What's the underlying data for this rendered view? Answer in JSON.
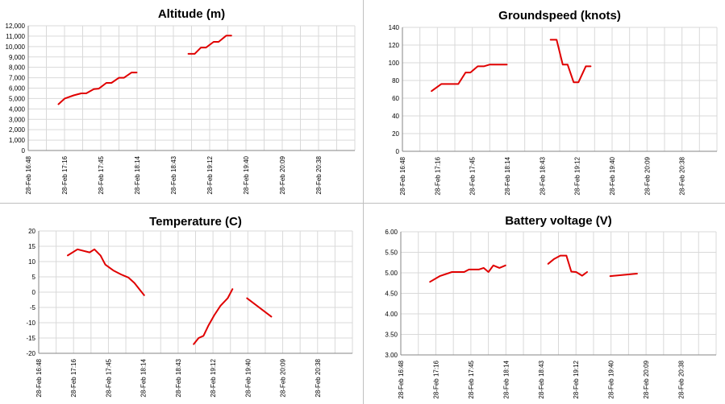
{
  "chart_data": [
    {
      "type": "line",
      "title": "Altitude (m)",
      "xlabel": "",
      "ylabel": "",
      "x_tick_labels": [
        "28-Feb 16:48",
        "28-Feb 17:16",
        "28-Feb 17:45",
        "28-Feb 18:14",
        "28-Feb 18:43",
        "28-Feb 19:12",
        "28-Feb 19:40",
        "28-Feb 20:09",
        "28-Feb 20:38"
      ],
      "y_tick_labels": [
        "0",
        "1,000",
        "2,000",
        "3,000",
        "4,000",
        "5,000",
        "6,000",
        "7,000",
        "8,000",
        "9,000",
        "10,000",
        "11,000",
        "12,000"
      ],
      "xlim": [
        "28-Feb 16:48",
        "28-Feb 21:07"
      ],
      "ylim": [
        0,
        12000
      ],
      "grid": true,
      "legend": "none",
      "line_color": "#e00000",
      "series": [
        {
          "segments": [
            [
              [
                "28-Feb 17:12",
                4450
              ],
              [
                "28-Feb 17:17",
                5000
              ],
              [
                "28-Feb 17:24",
                5300
              ],
              [
                "28-Feb 17:30",
                5500
              ],
              [
                "28-Feb 17:34",
                5500
              ],
              [
                "28-Feb 17:40",
                5900
              ],
              [
                "28-Feb 17:44",
                5950
              ],
              [
                "28-Feb 17:50",
                6500
              ],
              [
                "28-Feb 17:54",
                6500
              ],
              [
                "28-Feb 18:00",
                7000
              ],
              [
                "28-Feb 18:04",
                7000
              ],
              [
                "28-Feb 18:10",
                7500
              ],
              [
                "28-Feb 18:14",
                7500
              ]
            ],
            [
              [
                "28-Feb 18:55",
                9300
              ],
              [
                "28-Feb 19:00",
                9300
              ],
              [
                "28-Feb 19:05",
                9900
              ],
              [
                "28-Feb 19:09",
                9900
              ],
              [
                "28-Feb 19:15",
                10450
              ],
              [
                "28-Feb 19:19",
                10450
              ],
              [
                "28-Feb 19:25",
                11050
              ],
              [
                "28-Feb 19:29",
                11050
              ]
            ]
          ]
        }
      ]
    },
    {
      "type": "line",
      "title": "Groundspeed (knots)",
      "xlabel": "",
      "ylabel": "",
      "x_tick_labels": [
        "28-Feb 16:48",
        "28-Feb 17:16",
        "28-Feb 17:45",
        "28-Feb 18:14",
        "28-Feb 18:43",
        "28-Feb 19:12",
        "28-Feb 19:40",
        "28-Feb 20:09",
        "28-Feb 20:38"
      ],
      "y_tick_labels": [
        "0",
        "20",
        "40",
        "60",
        "80",
        "100",
        "120",
        "140"
      ],
      "xlim": [
        "28-Feb 16:48",
        "28-Feb 21:07"
      ],
      "ylim": [
        0,
        140
      ],
      "grid": true,
      "legend": "none",
      "line_color": "#e00000",
      "series": [
        {
          "segments": [
            [
              [
                "28-Feb 17:12",
                68
              ],
              [
                "28-Feb 17:20",
                76
              ],
              [
                "28-Feb 17:26",
                76
              ],
              [
                "28-Feb 17:34",
                76
              ],
              [
                "28-Feb 17:40",
                89
              ],
              [
                "28-Feb 17:44",
                89
              ],
              [
                "28-Feb 17:50",
                96
              ],
              [
                "28-Feb 17:55",
                96
              ],
              [
                "28-Feb 18:00",
                98
              ],
              [
                "28-Feb 18:14",
                98
              ]
            ],
            [
              [
                "28-Feb 18:50",
                126
              ],
              [
                "28-Feb 18:55",
                126
              ],
              [
                "28-Feb 19:00",
                98
              ],
              [
                "28-Feb 19:04",
                98
              ],
              [
                "28-Feb 19:09",
                78
              ],
              [
                "28-Feb 19:13",
                78
              ],
              [
                "28-Feb 19:19",
                96
              ],
              [
                "28-Feb 19:23",
                96
              ]
            ]
          ]
        }
      ]
    },
    {
      "type": "line",
      "title": "Temperature (C)",
      "xlabel": "",
      "ylabel": "",
      "x_tick_labels": [
        "28-Feb 16:48",
        "28-Feb 17:16",
        "28-Feb 17:45",
        "28-Feb 18:14",
        "28-Feb 18:43",
        "28-Feb 19:12",
        "28-Feb 19:40",
        "28-Feb 20:09",
        "28-Feb 20:38"
      ],
      "y_tick_labels": [
        "-20",
        "-15",
        "-10",
        "-5",
        "0",
        "5",
        "10",
        "15",
        "20"
      ],
      "xlim": [
        "28-Feb 16:48",
        "28-Feb 21:07"
      ],
      "ylim": [
        -20,
        20
      ],
      "grid": true,
      "legend": "none",
      "line_color": "#e00000",
      "series": [
        {
          "segments": [
            [
              [
                "28-Feb 17:12",
                12
              ],
              [
                "28-Feb 17:20",
                14
              ],
              [
                "28-Feb 17:30",
                13
              ],
              [
                "28-Feb 17:34",
                14
              ],
              [
                "28-Feb 17:39",
                12
              ],
              [
                "28-Feb 17:43",
                9
              ],
              [
                "28-Feb 17:50",
                7
              ],
              [
                "28-Feb 17:56",
                5.8
              ],
              [
                "28-Feb 18:02",
                4.8
              ],
              [
                "28-Feb 18:07",
                3
              ],
              [
                "28-Feb 18:12",
                0.5
              ],
              [
                "28-Feb 18:15",
                -1
              ]
            ],
            [
              [
                "28-Feb 18:56",
                -17
              ],
              [
                "28-Feb 19:00",
                -15
              ],
              [
                "28-Feb 19:04",
                -14.3
              ],
              [
                "28-Feb 19:08",
                -11
              ],
              [
                "28-Feb 19:13",
                -7.5
              ],
              [
                "28-Feb 19:18",
                -4.5
              ],
              [
                "28-Feb 19:24",
                -2
              ],
              [
                "28-Feb 19:28",
                1
              ]
            ],
            [
              [
                "28-Feb 19:40",
                -2
              ],
              [
                "28-Feb 20:00",
                -8
              ]
            ]
          ]
        }
      ]
    },
    {
      "type": "line",
      "title": "Battery voltage (V)",
      "xlabel": "",
      "ylabel": "",
      "x_tick_labels": [
        "28-Feb 16:48",
        "28-Feb 17:16",
        "28-Feb 17:45",
        "28-Feb 18:14",
        "28-Feb 18:43",
        "28-Feb 19:12",
        "28-Feb 19:40",
        "28-Feb 20:09",
        "28-Feb 20:38"
      ],
      "y_tick_labels": [
        "3.00",
        "3.50",
        "4.00",
        "4.50",
        "5.00",
        "5.50",
        "6.00"
      ],
      "xlim": [
        "28-Feb 16:48",
        "28-Feb 21:07"
      ],
      "ylim": [
        3.0,
        6.0
      ],
      "grid": true,
      "legend": "none",
      "line_color": "#e00000",
      "series": [
        {
          "segments": [
            [
              [
                "28-Feb 17:12",
                4.78
              ],
              [
                "28-Feb 17:20",
                4.92
              ],
              [
                "28-Feb 17:30",
                5.02
              ],
              [
                "28-Feb 17:40",
                5.02
              ],
              [
                "28-Feb 17:44",
                5.08
              ],
              [
                "28-Feb 17:52",
                5.08
              ],
              [
                "28-Feb 17:56",
                5.12
              ],
              [
                "28-Feb 18:00",
                5.02
              ],
              [
                "28-Feb 18:04",
                5.18
              ],
              [
                "28-Feb 18:09",
                5.12
              ],
              [
                "28-Feb 18:14",
                5.18
              ]
            ],
            [
              [
                "28-Feb 18:49",
                5.22
              ],
              [
                "28-Feb 18:54",
                5.34
              ],
              [
                "28-Feb 18:59",
                5.42
              ],
              [
                "28-Feb 19:04",
                5.42
              ],
              [
                "28-Feb 19:08",
                5.03
              ],
              [
                "28-Feb 19:12",
                5.02
              ],
              [
                "28-Feb 19:17",
                4.93
              ],
              [
                "28-Feb 19:21",
                5.02
              ]
            ],
            [
              [
                "28-Feb 19:40",
                4.92
              ],
              [
                "28-Feb 20:02",
                4.98
              ]
            ]
          ]
        }
      ]
    }
  ]
}
